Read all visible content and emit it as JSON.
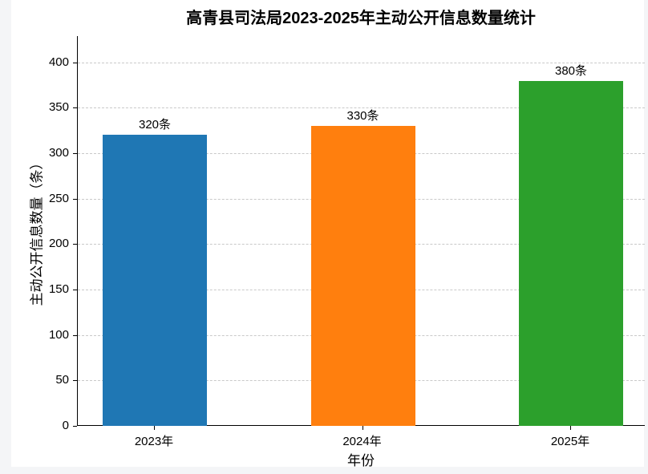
{
  "page": {
    "background_color": "#f4f5f7",
    "figure_background_color": "#ffffff"
  },
  "chart_data": {
    "type": "bar",
    "title": "高青县司法局2023-2025年主动公开信息数量统计",
    "xlabel": "年份",
    "ylabel": "主动公开信息数量（条）",
    "categories": [
      "2023年",
      "2024年",
      "2025年"
    ],
    "values": [
      320,
      330,
      380
    ],
    "bar_labels": [
      "320条",
      "330条",
      "380条"
    ],
    "bar_colors": [
      "#1f77b4",
      "#ff7f0e",
      "#2ca02c"
    ],
    "yticks": [
      0,
      50,
      100,
      150,
      200,
      250,
      300,
      350,
      400
    ],
    "ylim": [
      0,
      429
    ],
    "grid": "horizontal dashed",
    "grid_color": "#c9c9c9",
    "axis_color": "#000000",
    "legend": "none"
  }
}
